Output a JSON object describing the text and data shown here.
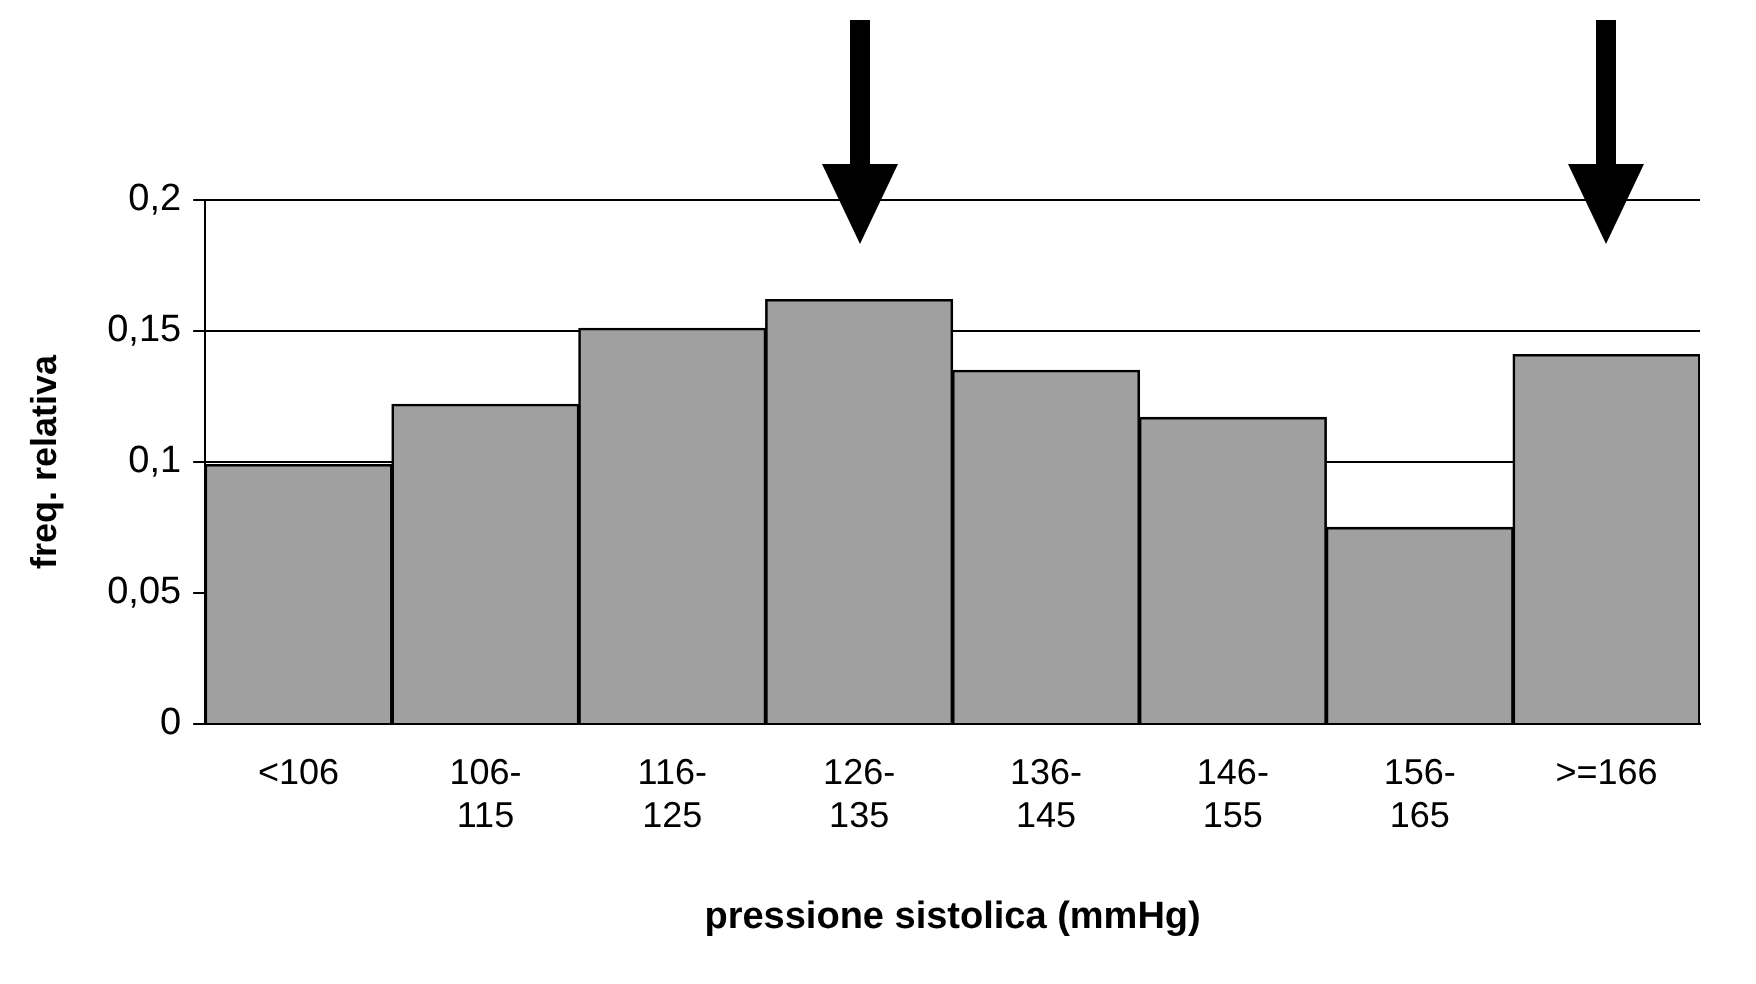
{
  "chart_data": {
    "type": "bar",
    "xlabel": "pressione sistolica (mmHg)",
    "ylabel": "freq. relativa",
    "categories": [
      "<106",
      "106-115",
      "116-125",
      "126-135",
      "136-145",
      "146-155",
      "156-165",
      ">=166"
    ],
    "values": [
      0.099,
      0.122,
      0.151,
      0.162,
      0.135,
      0.117,
      0.075,
      0.141
    ],
    "color": "#a0a0a0",
    "ylim": [
      0,
      0.2
    ],
    "yticks": [
      {
        "value": 0,
        "label": "0"
      },
      {
        "value": 0.05,
        "label": "0,05"
      },
      {
        "value": 0.1,
        "label": "0,1"
      },
      {
        "value": 0.15,
        "label": "0,15"
      },
      {
        "value": 0.2,
        "label": "0,2"
      }
    ],
    "grid": "y",
    "legend": false
  }
}
